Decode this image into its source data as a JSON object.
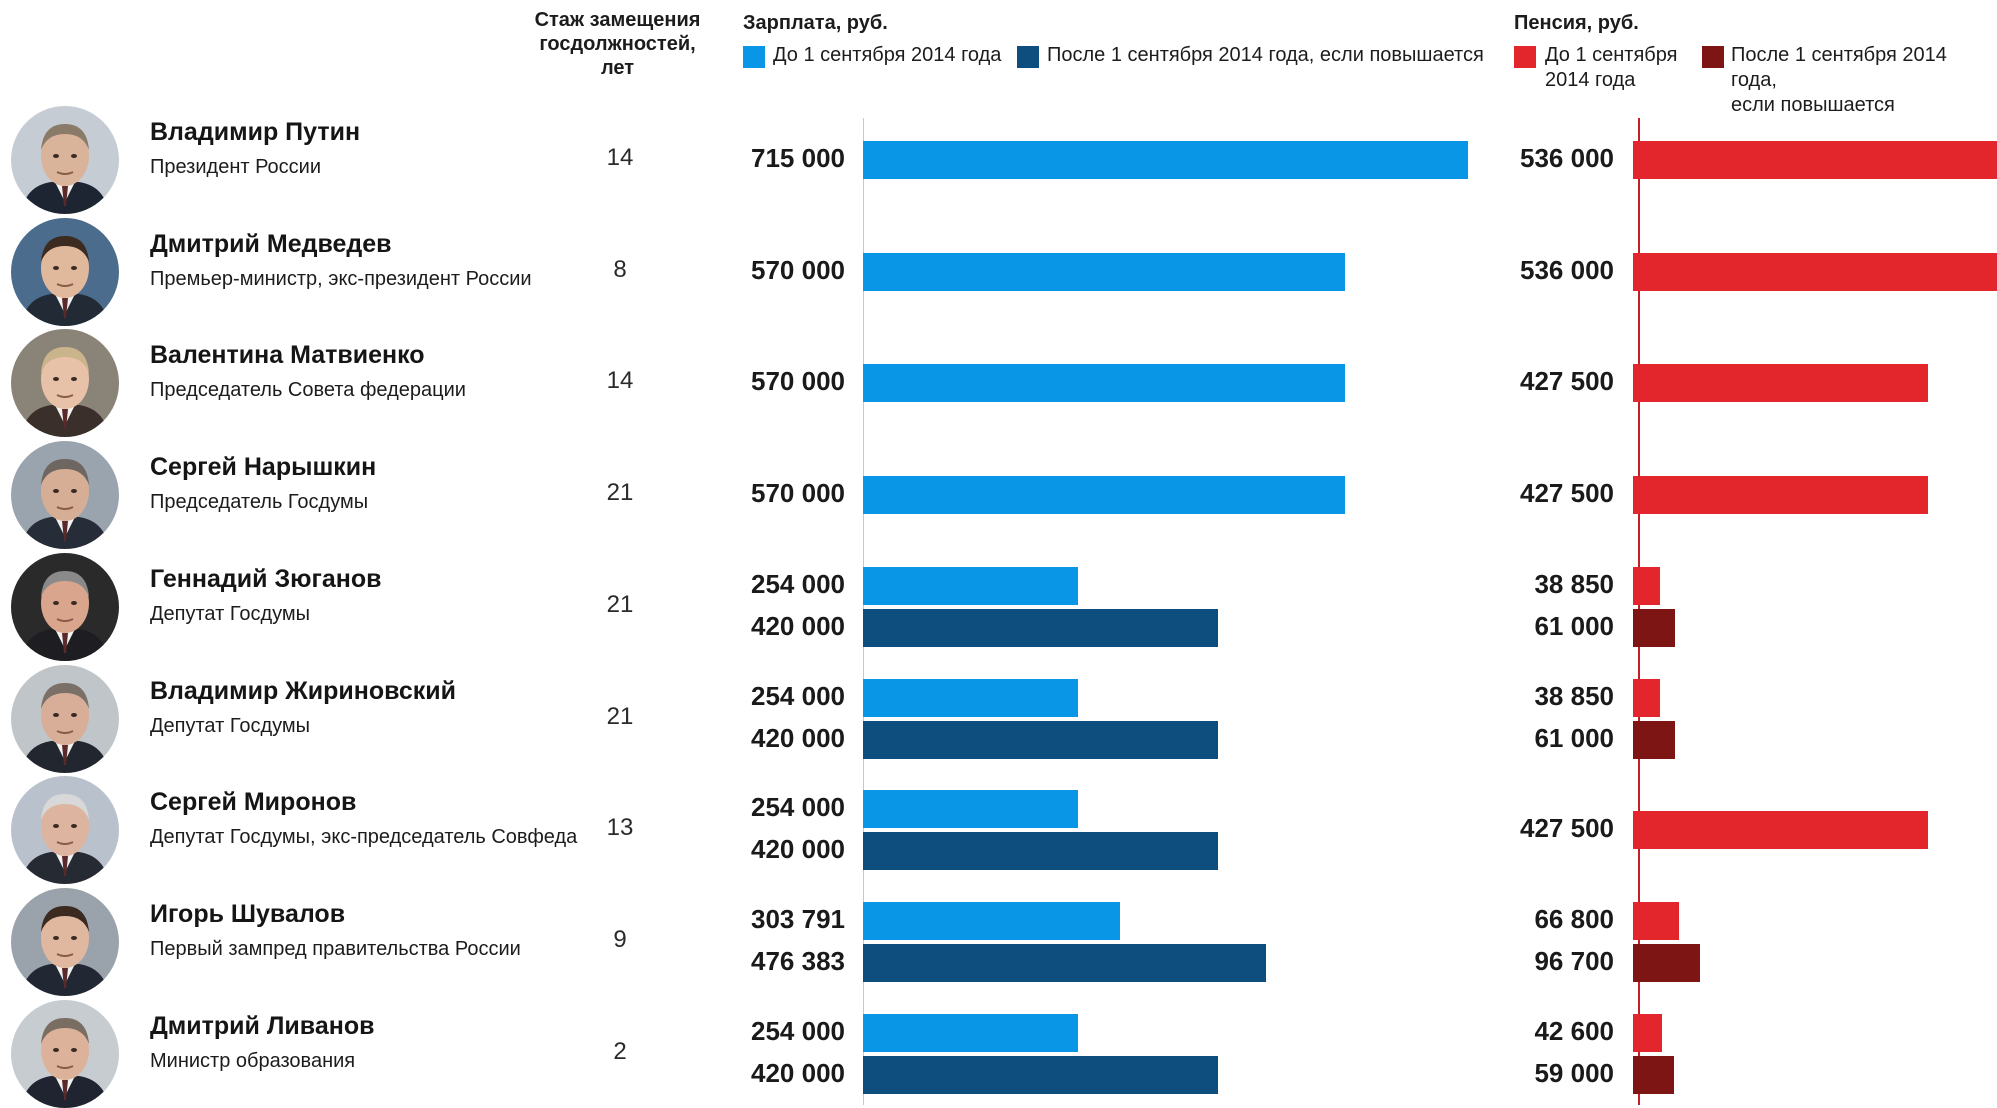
{
  "headers": {
    "tenure": "Стаж замещения госдолжностей, лет",
    "salary_title": "Зарплата, руб.",
    "pension_title": "Пенсия, руб."
  },
  "legend": {
    "salary_before": "До 1 сентября 2014 года",
    "salary_after": "После 1 сентября 2014 года, если повышается",
    "pension_before_line1": "До 1 сентября",
    "pension_before_line2": "2014 года",
    "pension_after_line1": "После 1 сентября 2014 года,",
    "pension_after_line2": "если повышается"
  },
  "colors": {
    "salary_before": "#0a96e6",
    "salary_after": "#0d4e7e",
    "pension_before": "#e2262b",
    "pension_after": "#7d1515",
    "axis_salary": "#c8c8c8",
    "axis_pension": "#c0202a"
  },
  "chart_data": {
    "type": "bar",
    "orientation": "horizontal",
    "xlim_salary": [
      0,
      750000
    ],
    "xlim_pension": [
      0,
      460000
    ],
    "series": [
      {
        "name": "Зарплата, руб. — До 1 сентября 2014 года",
        "key": "salary_before"
      },
      {
        "name": "Зарплата, руб. — После 1 сентября 2014 года, если повышается",
        "key": "salary_after"
      },
      {
        "name": "Пенсия, руб. — До 1 сентября 2014 года",
        "key": "pension_before"
      },
      {
        "name": "Пенсия, руб. — После 1 сентября 2014 года, если повышается",
        "key": "pension_after"
      }
    ],
    "rows": [
      {
        "name": "Владимир Путин",
        "role": "Президент России",
        "tenure": "14",
        "salary_before": 715000,
        "salary_before_label": "715 000",
        "salary_after": null,
        "salary_after_label": "",
        "pension_before": 536000,
        "pension_before_label": "536 000",
        "pension_after": null,
        "pension_after_label": ""
      },
      {
        "name": "Дмитрий Медведев",
        "role": "Премьер-министр, экс-президент России",
        "tenure": "8",
        "salary_before": 570000,
        "salary_before_label": "570 000",
        "salary_after": null,
        "salary_after_label": "",
        "pension_before": 536000,
        "pension_before_label": "536 000",
        "pension_after": null,
        "pension_after_label": ""
      },
      {
        "name": "Валентина Матвиенко",
        "role": "Председатель Совета федерации",
        "tenure": "14",
        "salary_before": 570000,
        "salary_before_label": "570 000",
        "salary_after": null,
        "salary_after_label": "",
        "pension_before": 427500,
        "pension_before_label": "427 500",
        "pension_after": null,
        "pension_after_label": ""
      },
      {
        "name": "Сергей Нарышкин",
        "role": "Председатель Госдумы",
        "tenure": "21",
        "salary_before": 570000,
        "salary_before_label": "570 000",
        "salary_after": null,
        "salary_after_label": "",
        "pension_before": 427500,
        "pension_before_label": "427 500",
        "pension_after": null,
        "pension_after_label": ""
      },
      {
        "name": "Геннадий Зюганов",
        "role": "Депутат Госдумы",
        "tenure": "21",
        "salary_before": 254000,
        "salary_before_label": "254 000",
        "salary_after": 420000,
        "salary_after_label": "420 000",
        "pension_before": 38850,
        "pension_before_label": "38 850",
        "pension_after": 61000,
        "pension_after_label": "61 000"
      },
      {
        "name": "Владимир Жириновский",
        "role": "Депутат Госдумы",
        "tenure": "21",
        "salary_before": 254000,
        "salary_before_label": "254 000",
        "salary_after": 420000,
        "salary_after_label": "420 000",
        "pension_before": 38850,
        "pension_before_label": "38 850",
        "pension_after": 61000,
        "pension_after_label": "61 000"
      },
      {
        "name": "Сергей Миронов",
        "role": "Депутат Госдумы, экс-председатель Совфеда",
        "tenure": "13",
        "salary_before": 254000,
        "salary_before_label": "254 000",
        "salary_after": 420000,
        "salary_after_label": "420 000",
        "pension_before": 427500,
        "pension_before_label": "427 500",
        "pension_after": null,
        "pension_after_label": ""
      },
      {
        "name": "Игорь Шувалов",
        "role": "Первый зампред правительства России",
        "tenure": "9",
        "salary_before": 303791,
        "salary_before_label": "303 791",
        "salary_after": 476383,
        "salary_after_label": "476 383",
        "pension_before": 66800,
        "pension_before_label": "66 800",
        "pension_after": 96700,
        "pension_after_label": "96 700"
      },
      {
        "name": "Дмитрий Ливанов",
        "role": "Министр образования",
        "tenure": "2",
        "salary_before": 254000,
        "salary_before_label": "254 000",
        "salary_after": 420000,
        "salary_after_label": "420 000",
        "pension_before": 42600,
        "pension_before_label": "42 600",
        "pension_after": 59000,
        "pension_after_label": "59 000"
      }
    ]
  }
}
